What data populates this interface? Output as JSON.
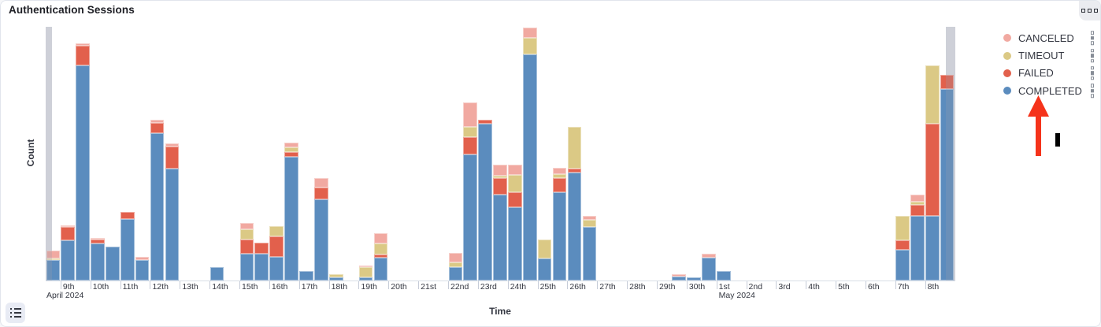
{
  "panel": {
    "title": "Authentication Sessions"
  },
  "legend": {
    "items": [
      {
        "id": "canceled",
        "label": "CANCELED",
        "color": "#F1A9A1"
      },
      {
        "id": "timeout",
        "label": "TIMEOUT",
        "color": "#DBC985"
      },
      {
        "id": "failed",
        "label": "FAILED",
        "color": "#E2604C"
      },
      {
        "id": "completed",
        "label": "COMPLETED",
        "color": "#5B8CBE"
      }
    ]
  },
  "annotation": {
    "type": "arrow-up",
    "color": "#F5331B",
    "cursor_bar_color": "#000000"
  },
  "chart_data": {
    "type": "bar",
    "stacked": true,
    "title": "Authentication Sessions",
    "xlabel": "Time",
    "ylabel": "Count",
    "legend_position": "right",
    "grid": false,
    "y_axis": {
      "tick_labels_visible": false,
      "unit": "relative (no numeric ticks shown)",
      "max": 322
    },
    "x_axis": {
      "bucket_hours": 12,
      "bucket_count": 61,
      "range_note": "Apr 8 2024 12:00 to May 9 2024 00:00, partial gray buckets at both ends",
      "day_ticks": [
        "9th",
        "10th",
        "11th",
        "12th",
        "13th",
        "14th",
        "15th",
        "16th",
        "17th",
        "18th",
        "19th",
        "20th",
        "21st",
        "22nd",
        "23rd",
        "24th",
        "25th",
        "26th",
        "27th",
        "28th",
        "29th",
        "30th",
        "1st",
        "2nd",
        "3rd",
        "4th",
        "5th",
        "6th",
        "7th",
        "8th"
      ],
      "month_labels": [
        {
          "text": "April 2024",
          "anchor": "start"
        },
        {
          "text": "May 2024",
          "anchor_day_index": 22
        }
      ]
    },
    "series_order_bottom_up": [
      "completed",
      "failed",
      "timeout",
      "canceled"
    ],
    "buckets": [
      {
        "i": 0,
        "t": "Apr 8 PM",
        "completed": 26,
        "failed": 0,
        "timeout": 2,
        "canceled": 10
      },
      {
        "i": 1,
        "t": "Apr 9 AM",
        "completed": 51,
        "failed": 17,
        "timeout": 0,
        "canceled": 2
      },
      {
        "i": 2,
        "t": "Apr 9 PM",
        "completed": 273,
        "failed": 25,
        "timeout": 0,
        "canceled": 3
      },
      {
        "i": 3,
        "t": "Apr 10 AM",
        "completed": 47,
        "failed": 5,
        "timeout": 0,
        "canceled": 2
      },
      {
        "i": 4,
        "t": "Apr 10 PM",
        "completed": 43,
        "failed": 0,
        "timeout": 0,
        "canceled": 0
      },
      {
        "i": 5,
        "t": "Apr 11 AM",
        "completed": 78,
        "failed": 9,
        "timeout": 0,
        "canceled": 0
      },
      {
        "i": 6,
        "t": "Apr 11 PM",
        "completed": 26,
        "failed": 0,
        "timeout": 0,
        "canceled": 4
      },
      {
        "i": 7,
        "t": "Apr 12 AM",
        "completed": 187,
        "failed": 13,
        "timeout": 0,
        "canceled": 4
      },
      {
        "i": 8,
        "t": "Apr 12 PM",
        "completed": 142,
        "failed": 28,
        "timeout": 0,
        "canceled": 4
      },
      {
        "i": 11,
        "t": "Apr 14 AM",
        "completed": 17,
        "failed": 0,
        "timeout": 0,
        "canceled": 0
      },
      {
        "i": 13,
        "t": "Apr 15 AM",
        "completed": 34,
        "failed": 18,
        "timeout": 13,
        "canceled": 8
      },
      {
        "i": 14,
        "t": "Apr 15 PM",
        "completed": 34,
        "failed": 14,
        "timeout": 0,
        "canceled": 0
      },
      {
        "i": 15,
        "t": "Apr 16 AM",
        "completed": 30,
        "failed": 26,
        "timeout": 13,
        "canceled": 0
      },
      {
        "i": 16,
        "t": "Apr 16 PM",
        "completed": 157,
        "failed": 6,
        "timeout": 6,
        "canceled": 6
      },
      {
        "i": 17,
        "t": "Apr 17 AM",
        "completed": 12,
        "failed": 0,
        "timeout": 0,
        "canceled": 0
      },
      {
        "i": 18,
        "t": "Apr 17 PM",
        "completed": 103,
        "failed": 15,
        "timeout": 0,
        "canceled": 12
      },
      {
        "i": 19,
        "t": "Apr 18 AM",
        "completed": 4,
        "failed": 0,
        "timeout": 4,
        "canceled": 0
      },
      {
        "i": 21,
        "t": "Apr 19 AM",
        "completed": 4,
        "failed": 0,
        "timeout": 13,
        "canceled": 2
      },
      {
        "i": 22,
        "t": "Apr 19 PM",
        "completed": 29,
        "failed": 4,
        "timeout": 14,
        "canceled": 13
      },
      {
        "i": 27,
        "t": "Apr 22 AM",
        "completed": 17,
        "failed": 0,
        "timeout": 6,
        "canceled": 12
      },
      {
        "i": 28,
        "t": "Apr 22 PM",
        "completed": 160,
        "failed": 22,
        "timeout": 13,
        "canceled": 31
      },
      {
        "i": 29,
        "t": "Apr 23 AM",
        "completed": 199,
        "failed": 5,
        "timeout": 0,
        "canceled": 0
      },
      {
        "i": 30,
        "t": "Apr 23 PM",
        "completed": 109,
        "failed": 21,
        "timeout": 3,
        "canceled": 14
      },
      {
        "i": 31,
        "t": "Apr 24 AM",
        "completed": 93,
        "failed": 19,
        "timeout": 22,
        "canceled": 13
      },
      {
        "i": 32,
        "t": "Apr 24 PM",
        "completed": 287,
        "failed": 0,
        "timeout": 21,
        "canceled": 13
      },
      {
        "i": 33,
        "t": "Apr 25 AM",
        "completed": 28,
        "failed": 0,
        "timeout": 24,
        "canceled": 0
      },
      {
        "i": 34,
        "t": "Apr 25 PM",
        "completed": 112,
        "failed": 18,
        "timeout": 5,
        "canceled": 8
      },
      {
        "i": 35,
        "t": "Apr 26 AM",
        "completed": 137,
        "failed": 5,
        "timeout": 53,
        "canceled": 0
      },
      {
        "i": 36,
        "t": "Apr 26 PM",
        "completed": 68,
        "failed": 0,
        "timeout": 9,
        "canceled": 5
      },
      {
        "i": 42,
        "t": "Apr 29 PM",
        "completed": 5,
        "failed": 0,
        "timeout": 0,
        "canceled": 3
      },
      {
        "i": 43,
        "t": "Apr 30 AM",
        "completed": 4,
        "failed": 0,
        "timeout": 0,
        "canceled": 0
      },
      {
        "i": 44,
        "t": "Apr 30 PM",
        "completed": 29,
        "failed": 0,
        "timeout": 0,
        "canceled": 5
      },
      {
        "i": 45,
        "t": "May 1 AM",
        "completed": 12,
        "failed": 0,
        "timeout": 0,
        "canceled": 0
      },
      {
        "i": 57,
        "t": "May 7 AM",
        "completed": 39,
        "failed": 12,
        "timeout": 31,
        "canceled": 0
      },
      {
        "i": 58,
        "t": "May 7 PM",
        "completed": 82,
        "failed": 14,
        "timeout": 4,
        "canceled": 9
      },
      {
        "i": 59,
        "t": "May 8 AM",
        "completed": 82,
        "failed": 117,
        "timeout": 74,
        "canceled": 0
      },
      {
        "i": 60,
        "t": "May 8 PM",
        "completed": 243,
        "failed": 18,
        "timeout": 0,
        "canceled": 0
      }
    ],
    "partial_bucket_marks": [
      {
        "position": "left"
      },
      {
        "position": "right"
      }
    ]
  }
}
